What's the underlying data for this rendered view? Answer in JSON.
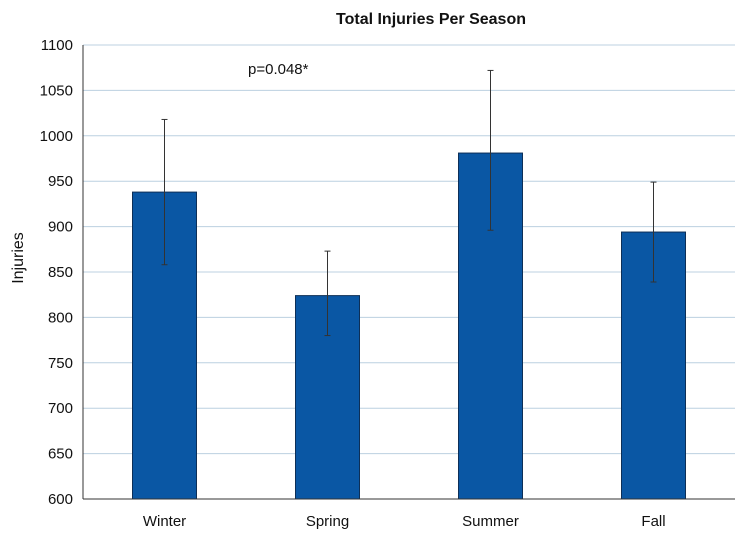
{
  "chart_data": {
    "type": "bar",
    "title": "Total Injuries Per Season",
    "xlabel": "",
    "ylabel": "Injuries",
    "categories": [
      "Winter",
      "Spring",
      "Summer",
      "Fall"
    ],
    "values": [
      938,
      824,
      981,
      894
    ],
    "error_bars": {
      "low": [
        858,
        780,
        896,
        839
      ],
      "high": [
        1018,
        873,
        1072,
        949
      ]
    },
    "ylim": [
      600,
      1100
    ],
    "yticks": [
      600,
      650,
      700,
      750,
      800,
      850,
      900,
      950,
      1000,
      1050,
      1100
    ],
    "ytick_labels": [
      "600",
      "650",
      "700",
      "750",
      "800",
      "850",
      "900",
      "950",
      "1000",
      "1050",
      "1100"
    ],
    "annotation": "p=0.048*",
    "grid": true,
    "colors": {
      "bar_fill": "#0a57a4",
      "bar_stroke": "#0d2f57",
      "grid": "#bcd0e0",
      "axis": "#333333",
      "error_bar": "#333333"
    }
  }
}
